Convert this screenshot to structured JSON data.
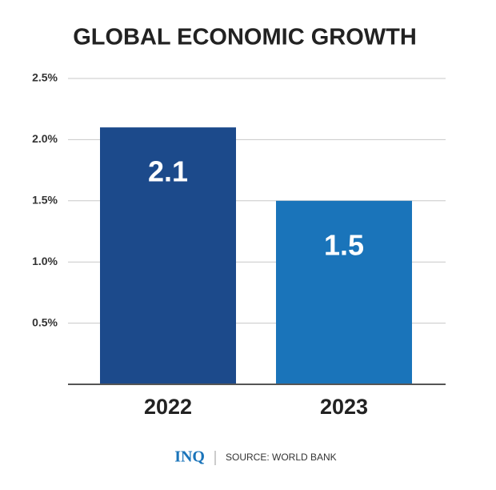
{
  "chart_data": {
    "type": "bar",
    "title": "GLOBAL ECONOMIC GROWTH",
    "categories": [
      "2022",
      "2023"
    ],
    "values": [
      2.1,
      1.5
    ],
    "colors": [
      "#1c4a8b",
      "#1a74ba"
    ],
    "ylim": [
      0,
      2.5
    ],
    "yticks": [
      {
        "value": 0.5,
        "label": "0.5%"
      },
      {
        "value": 1.0,
        "label": "1.0%"
      },
      {
        "value": 1.5,
        "label": "1.5%"
      },
      {
        "value": 2.0,
        "label": "2.0%"
      },
      {
        "value": 2.5,
        "label": "2.5%"
      }
    ],
    "grid": true,
    "data_labels": true,
    "logo": "INQ",
    "source": "SOURCE: WORLD BANK"
  }
}
